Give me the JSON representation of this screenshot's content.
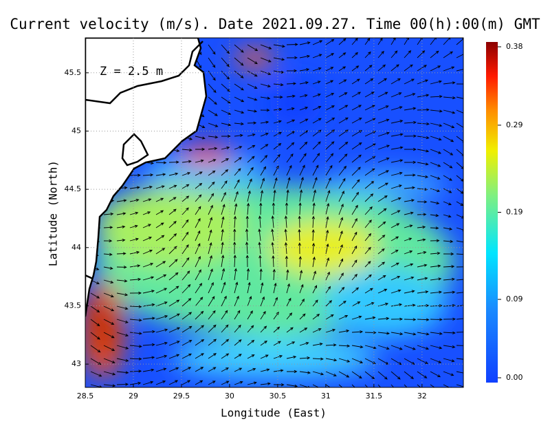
{
  "map": {
    "title": "Current velocity (m/s). Date 2021.09.27. Time 00(h):00(m) GMT",
    "depth_label": "Z = 2.5 m",
    "x_axis_label": "Longitude (East)",
    "y_axis_label": "Latitude (North)",
    "xlim": [
      28.5,
      32.43
    ],
    "ylim": [
      42.8,
      45.8
    ],
    "xticks": [
      28.5,
      29,
      29.5,
      30,
      30.5,
      31,
      31.5,
      32
    ],
    "yticks": [
      43,
      43.5,
      44,
      44.5,
      45,
      45.5
    ],
    "grid": true,
    "colorbar": {
      "lim": [
        0,
        0.38
      ],
      "ticks": [
        {
          "value": 0,
          "label": "0.00"
        },
        {
          "value": 0.09,
          "label": "0.09"
        },
        {
          "value": 0.19,
          "label": "0.19"
        },
        {
          "value": 0.29,
          "label": "0.29"
        },
        {
          "value": 0.38,
          "label": "0.38"
        }
      ]
    }
  }
}
